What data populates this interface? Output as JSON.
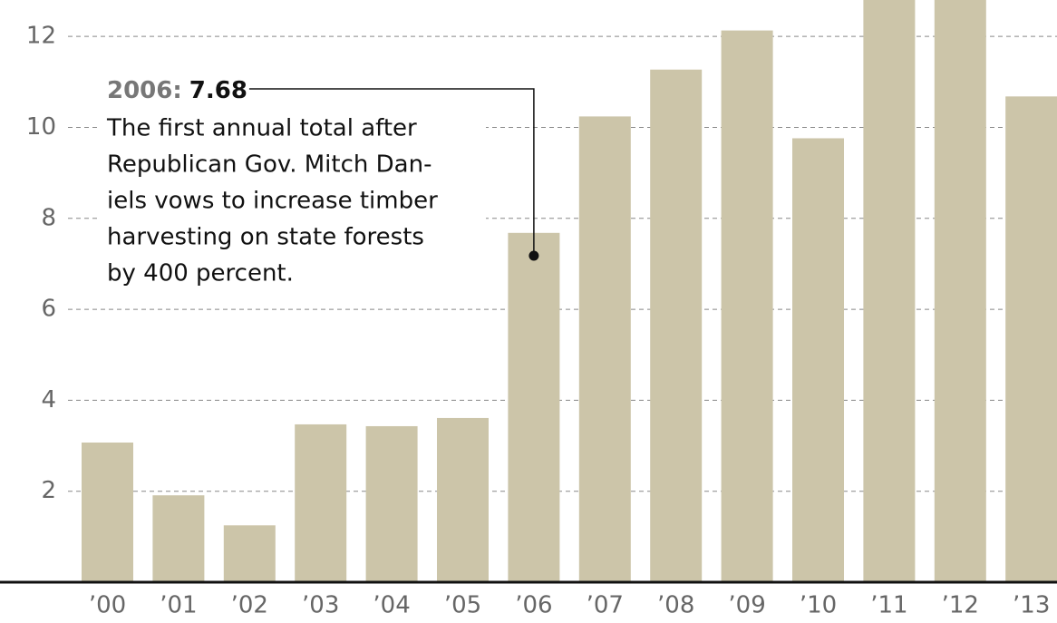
{
  "chart_data": {
    "type": "bar",
    "categories": [
      "’00",
      "’01",
      "’02",
      "’03",
      "’04",
      "’05",
      "’06",
      "’07",
      "’08",
      "’09",
      "’10",
      "’11",
      "’12",
      "’13"
    ],
    "values": [
      3.07,
      1.91,
      1.25,
      3.47,
      3.43,
      3.61,
      7.68,
      10.24,
      11.27,
      12.13,
      9.76,
      13.4,
      13.6,
      10.68
    ],
    "color": "#ccc5a9",
    "ylim": [
      0,
      12.8
    ],
    "yticks": [
      2,
      4,
      6,
      8,
      10,
      12
    ],
    "grid": true,
    "annotation": {
      "year": "2006:",
      "value": "7.68",
      "category_index": 6,
      "lines": [
        "The first annual total after",
        "Republican Gov. Mitch Dan-",
        "iels vows to increase timber",
        "harvesting on state forests",
        "by 400 percent."
      ]
    }
  }
}
